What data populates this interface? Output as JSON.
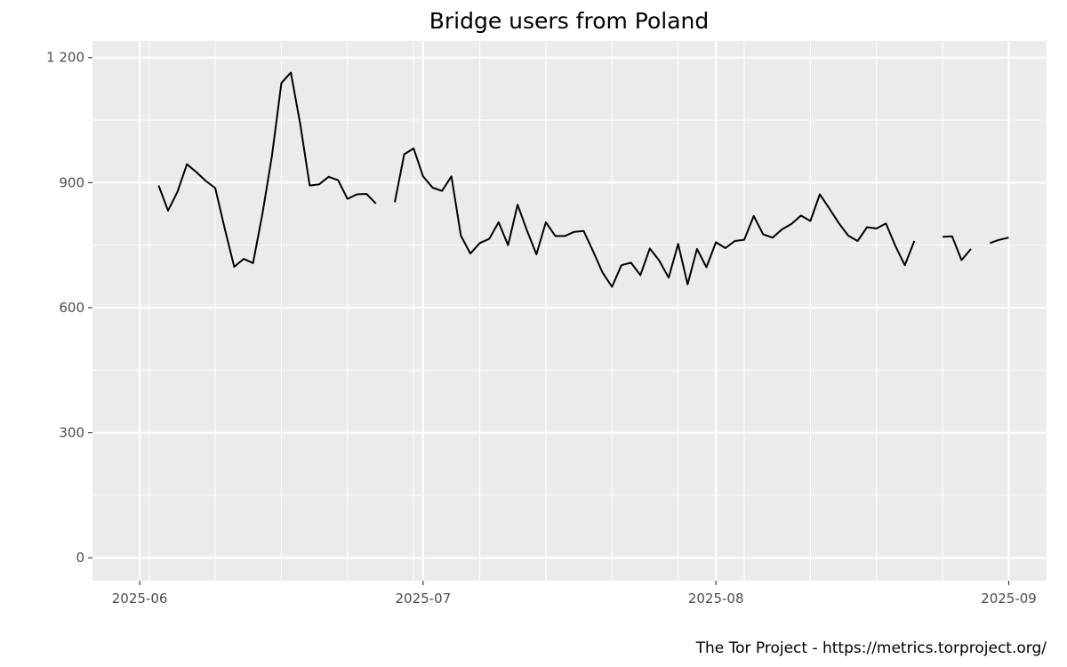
{
  "chart_data": {
    "type": "line",
    "title": "Bridge users from Poland",
    "caption": "The Tor Project - https://metrics.torproject.org/",
    "xlabel": "",
    "ylabel": "",
    "xlim": [
      "2025-05-27",
      "2025-09-05"
    ],
    "ylim": [
      -55,
      1240
    ],
    "x_ticks": [
      {
        "date": "2025-06-01",
        "label": "2025-06"
      },
      {
        "date": "2025-07-01",
        "label": "2025-07"
      },
      {
        "date": "2025-08-01",
        "label": "2025-08"
      },
      {
        "date": "2025-09-01",
        "label": "2025-09"
      }
    ],
    "y_ticks": [
      {
        "value": 0,
        "label": "0"
      },
      {
        "value": 300,
        "label": "300"
      },
      {
        "value": 600,
        "label": "600"
      },
      {
        "value": 900,
        "label": "900"
      },
      {
        "value": 1200,
        "label": "1 200"
      }
    ],
    "grid": true,
    "colors": {
      "panel": "#ebebeb",
      "grid": "#ffffff",
      "line": "#000000"
    },
    "series": [
      {
        "x": [
          "2025-06-03",
          "2025-06-04",
          "2025-06-05",
          "2025-06-06",
          "2025-06-07",
          "2025-06-08",
          "2025-06-09",
          "2025-06-10",
          "2025-06-11",
          "2025-06-12",
          "2025-06-13",
          "2025-06-14",
          "2025-06-15",
          "2025-06-16",
          "2025-06-17",
          "2025-06-18",
          "2025-06-19",
          "2025-06-20",
          "2025-06-21",
          "2025-06-22",
          "2025-06-23",
          "2025-06-24",
          "2025-06-25",
          "2025-06-26",
          "2025-06-27",
          "2025-06-28",
          "2025-06-29",
          "2025-06-30",
          "2025-07-01",
          "2025-07-02",
          "2025-07-03",
          "2025-07-04",
          "2025-07-05",
          "2025-07-06",
          "2025-07-07",
          "2025-07-08",
          "2025-07-09",
          "2025-07-10",
          "2025-07-11",
          "2025-07-12",
          "2025-07-13",
          "2025-07-14",
          "2025-07-15",
          "2025-07-16",
          "2025-07-17",
          "2025-07-18",
          "2025-07-19",
          "2025-07-20",
          "2025-07-21",
          "2025-07-22",
          "2025-07-23",
          "2025-07-24",
          "2025-07-25",
          "2025-07-26",
          "2025-07-27",
          "2025-07-28",
          "2025-07-29",
          "2025-07-30",
          "2025-07-31",
          "2025-08-01",
          "2025-08-02",
          "2025-08-03",
          "2025-08-04",
          "2025-08-05",
          "2025-08-06",
          "2025-08-07",
          "2025-08-08",
          "2025-08-09",
          "2025-08-10",
          "2025-08-11",
          "2025-08-12",
          "2025-08-13",
          "2025-08-14",
          "2025-08-15",
          "2025-08-16",
          "2025-08-17",
          "2025-08-18",
          "2025-08-19",
          "2025-08-20",
          "2025-08-21",
          "2025-08-22",
          "2025-08-23",
          "2025-08-24",
          "2025-08-25",
          "2025-08-26",
          "2025-08-27",
          "2025-08-28",
          "2025-08-29",
          "2025-08-30",
          "2025-08-31",
          "2025-09-01"
        ],
        "values": [
          893,
          833,
          878,
          944,
          925,
          904,
          887,
          790,
          698,
          717,
          707,
          826,
          965,
          1139,
          1164,
          1040,
          893,
          896,
          914,
          906,
          861,
          872,
          873,
          850,
          null,
          853,
          968,
          982,
          915,
          888,
          880,
          915,
          773,
          730,
          755,
          765,
          805,
          750,
          847,
          785,
          728,
          805,
          772,
          772,
          782,
          784,
          735,
          684,
          650,
          702,
          708,
          678,
          742,
          713,
          672,
          753,
          656,
          741,
          697,
          757,
          743,
          760,
          763,
          820,
          776,
          768,
          788,
          801,
          821,
          808,
          872,
          838,
          803,
          773,
          760,
          793,
          790,
          802,
          748,
          702,
          760,
          null,
          null,
          770,
          771,
          714,
          741,
          null,
          755,
          763,
          768
        ]
      }
    ]
  }
}
